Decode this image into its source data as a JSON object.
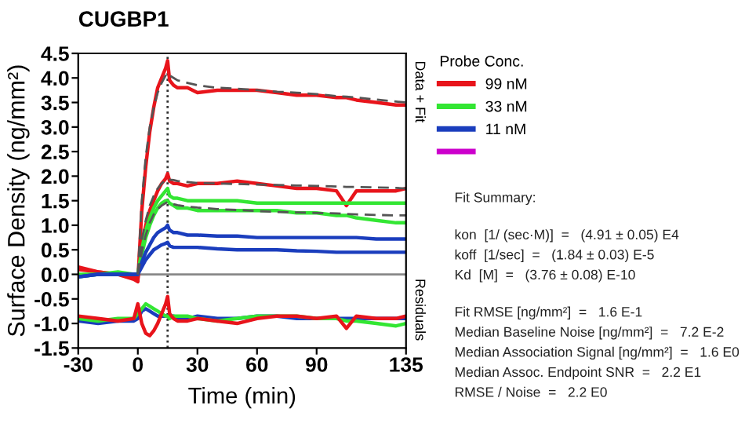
{
  "chart_data": {
    "type": "line",
    "title": "CUGBP1",
    "xlabel": "Time (min)",
    "ylabel": "Surface Density (ng/mm²)",
    "legend_title": "Probe Conc.",
    "legend": "right",
    "grid": false,
    "marker": "none",
    "line_style": "solid",
    "xlim": [
      -30,
      135
    ],
    "xticks": [
      -30,
      0,
      30,
      60,
      90,
      135
    ],
    "ylim": [
      -1.5,
      4.5
    ],
    "yticks": [
      -1.5,
      {
        "value": -1,
        "label": "-1.0"
      },
      -0.5,
      {
        "value": 0,
        "label": "0.0"
      },
      0.5,
      {
        "value": 1,
        "label": "1.0"
      },
      1.5,
      {
        "value": 2,
        "label": "2.0"
      },
      2.5,
      {
        "value": 3,
        "label": "3.0"
      },
      3.5,
      {
        "value": 4,
        "label": "4.0"
      },
      4.5
    ],
    "x": [
      -30,
      -20,
      -10,
      -2,
      0,
      2,
      4,
      6,
      8,
      10,
      12,
      14,
      15,
      16,
      18,
      20,
      25,
      30,
      40,
      50,
      60,
      70,
      80,
      90,
      100,
      105,
      110,
      120,
      130,
      135
    ],
    "ref_lines": [
      {
        "axis": "x",
        "value": 15,
        "color": "#333333",
        "line_style": "dotted"
      },
      {
        "axis": "y",
        "value": 0,
        "color": "#888888",
        "line_style": "solid"
      }
    ],
    "annotations": [
      "Data + Fit",
      "Residuals",
      "Fit Summary:",
      "kon  [1/ (sec·M)]  =   (4.91 ± 0.05) E4",
      "koff  [1/sec]  =   (1.84 ± 0.03) E-5",
      "Kd  [M]  =   (3.76 ± 0.08) E-10",
      "Fit RMSE [ng/mm²]  =   1.6 E-1",
      "Median Baseline Noise [ng/mm²]  =   7.2 E-2",
      "Median Association Signal [ng/mm²]  =   1.6 E0",
      "Median Assoc. Endpoint SNR  =   2.2 E1",
      "RMSE / Noise  =   2.2 E0"
    ],
    "series": [
      {
        "name": "99 nM",
        "color": "#e8141b",
        "values": [
          0.1,
          0.05,
          0.0,
          -0.1,
          -0.15,
          1.3,
          2.2,
          2.9,
          3.4,
          3.8,
          4.0,
          4.2,
          4.35,
          3.95,
          3.85,
          3.8,
          3.8,
          3.7,
          3.75,
          3.75,
          3.75,
          3.7,
          3.65,
          3.65,
          3.6,
          3.6,
          3.55,
          3.5,
          3.45,
          3.45
        ]
      },
      {
        "color": "#e8141b",
        "values": [
          0.15,
          0.05,
          0.0,
          -0.05,
          -0.1,
          0.6,
          1.0,
          1.3,
          1.5,
          1.7,
          1.85,
          1.95,
          2.05,
          1.9,
          1.85,
          1.85,
          1.8,
          1.85,
          1.85,
          1.9,
          1.85,
          1.8,
          1.75,
          1.75,
          1.7,
          1.4,
          1.7,
          1.7,
          1.7,
          1.75
        ]
      },
      {
        "name": "33 nM",
        "color": "#33e633",
        "values": [
          0.0,
          0.0,
          0.05,
          0.0,
          0.0,
          0.5,
          0.9,
          1.15,
          1.35,
          1.5,
          1.6,
          1.7,
          1.75,
          1.6,
          1.55,
          1.55,
          1.5,
          1.5,
          1.5,
          1.5,
          1.45,
          1.45,
          1.45,
          1.45,
          1.45,
          1.45,
          1.45,
          1.45,
          1.45,
          1.45
        ]
      },
      {
        "color": "#33e633",
        "values": [
          -0.05,
          0.0,
          0.0,
          0.0,
          0.0,
          0.4,
          0.75,
          1.0,
          1.2,
          1.35,
          1.45,
          1.5,
          1.5,
          1.45,
          1.4,
          1.35,
          1.35,
          1.3,
          1.3,
          1.3,
          1.3,
          1.3,
          1.25,
          1.25,
          1.2,
          1.2,
          1.15,
          1.1,
          1.05,
          1.05
        ]
      },
      {
        "name": "11 nM",
        "color": "#1a3dbd",
        "values": [
          -0.05,
          0.0,
          0.0,
          0.0,
          0.0,
          0.25,
          0.45,
          0.6,
          0.75,
          0.85,
          0.9,
          0.95,
          1.0,
          0.9,
          0.85,
          0.85,
          0.8,
          0.8,
          0.78,
          0.78,
          0.75,
          0.75,
          0.75,
          0.75,
          0.75,
          0.75,
          0.75,
          0.72,
          0.72,
          0.72
        ]
      },
      {
        "color": "#1a3dbd",
        "values": [
          -0.05,
          0.0,
          0.0,
          0.0,
          0.0,
          0.15,
          0.3,
          0.4,
          0.5,
          0.55,
          0.6,
          0.63,
          0.65,
          0.58,
          0.55,
          0.55,
          0.55,
          0.55,
          0.52,
          0.5,
          0.5,
          0.5,
          0.48,
          0.47,
          0.45,
          0.45,
          0.45,
          0.45,
          0.45,
          0.45
        ]
      },
      {
        "color": "#cc00cc",
        "values": [
          null,
          null,
          null,
          null,
          null,
          null,
          null,
          null,
          null,
          null,
          null,
          null,
          null,
          null,
          null,
          null,
          null,
          null,
          null,
          null,
          null,
          null,
          null,
          null,
          null,
          null,
          null,
          null,
          null,
          null
        ]
      },
      {
        "color": "#555555",
        "line_style": "dashed",
        "values": [
          null,
          null,
          null,
          null,
          0.0,
          1.5,
          2.4,
          3.0,
          3.4,
          3.7,
          3.9,
          4.05,
          4.1,
          4.05,
          4.0,
          3.95,
          3.9,
          3.85,
          3.8,
          3.78,
          3.75,
          3.72,
          3.7,
          3.67,
          3.63,
          3.62,
          3.6,
          3.56,
          3.52,
          3.5
        ]
      },
      {
        "color": "#555555",
        "line_style": "dashed",
        "values": [
          null,
          null,
          null,
          null,
          0.0,
          0.7,
          1.1,
          1.4,
          1.6,
          1.75,
          1.85,
          1.92,
          1.95,
          1.93,
          1.92,
          1.9,
          1.88,
          1.86,
          1.85,
          1.84,
          1.83,
          1.82,
          1.81,
          1.8,
          1.79,
          1.78,
          1.78,
          1.77,
          1.76,
          1.75
        ]
      },
      {
        "color": "#555555",
        "line_style": "dashed",
        "values": [
          null,
          null,
          null,
          null,
          0.0,
          0.45,
          0.8,
          1.05,
          1.22,
          1.33,
          1.4,
          1.45,
          1.47,
          1.45,
          1.43,
          1.41,
          1.38,
          1.36,
          1.33,
          1.31,
          1.29,
          1.27,
          1.26,
          1.25,
          1.24,
          1.23,
          1.22,
          1.21,
          1.2,
          1.2
        ]
      },
      {
        "color": "#1a3dbd",
        "values": [
          -0.95,
          -1.0,
          -0.95,
          -0.95,
          -0.9,
          -0.75,
          -0.7,
          -0.75,
          -0.8,
          -0.85,
          -0.85,
          -0.85,
          -0.85,
          -0.85,
          -0.85,
          -0.9,
          -0.9,
          -0.85,
          -0.9,
          -0.9,
          -0.85,
          -0.85,
          -0.9,
          -0.9,
          -0.9,
          -0.9,
          -0.9,
          -0.9,
          -0.9,
          -0.9
        ]
      },
      {
        "color": "#33e633",
        "values": [
          -0.9,
          -0.95,
          -0.9,
          -0.9,
          -0.8,
          -0.7,
          -0.6,
          -0.65,
          -0.7,
          -0.75,
          -0.8,
          -0.85,
          -0.85,
          -0.9,
          -0.85,
          -0.85,
          -0.85,
          -0.9,
          -0.95,
          -0.9,
          -0.85,
          -0.85,
          -0.85,
          -0.9,
          -0.9,
          -0.95,
          -0.95,
          -1.0,
          -1.05,
          -1.0
        ]
      },
      {
        "color": "#e8141b",
        "values": [
          -0.85,
          -0.9,
          -0.95,
          -0.9,
          -0.6,
          -1.0,
          -1.2,
          -1.25,
          -1.15,
          -1.0,
          -0.8,
          -0.6,
          -0.45,
          -0.8,
          -0.9,
          -0.95,
          -0.95,
          -0.9,
          -0.95,
          -1.0,
          -0.9,
          -0.85,
          -0.85,
          -0.9,
          -0.85,
          -1.1,
          -0.85,
          -0.9,
          -0.9,
          -0.85
        ]
      }
    ]
  }
}
